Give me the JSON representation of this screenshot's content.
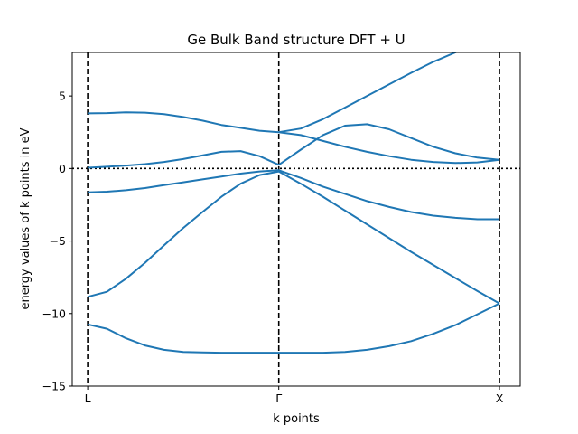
{
  "chart_data": {
    "type": "line",
    "title": "Ge Bulk Band structure DFT + U",
    "xlabel": "k points",
    "ylabel": "energy values of k points in eV",
    "xticks": [
      {
        "label": "L",
        "x": 0.0
      },
      {
        "label": "Γ",
        "x": 0.866
      },
      {
        "label": "X",
        "x": 1.866
      }
    ],
    "xlim": [
      -0.07,
      1.96
    ],
    "ylim": [
      -15,
      8
    ],
    "yticks": [
      -15,
      -10,
      -5,
      0,
      5
    ],
    "fermi_level": 0,
    "vertical_lines_at": [
      0.0,
      0.866,
      1.866
    ],
    "series_color": "#1f77b4",
    "series": [
      {
        "x": [
          0.0,
          0.087,
          0.173,
          0.26,
          0.346,
          0.433,
          0.52,
          0.606,
          0.693,
          0.779,
          0.866,
          0.966,
          1.066,
          1.166,
          1.266,
          1.366,
          1.466,
          1.566,
          1.666,
          1.766,
          1.866
        ],
        "y": [
          -10.75,
          -11.05,
          -11.7,
          -12.2,
          -12.5,
          -12.65,
          -12.68,
          -12.7,
          -12.7,
          -12.7,
          -12.7,
          -12.7,
          -12.7,
          -12.65,
          -12.5,
          -12.25,
          -11.9,
          -11.4,
          -10.8,
          -10.05,
          -9.3
        ]
      },
      {
        "x": [
          0.0,
          0.087,
          0.173,
          0.26,
          0.346,
          0.433,
          0.52,
          0.606,
          0.693,
          0.779,
          0.866,
          0.966,
          1.066,
          1.166,
          1.266,
          1.366,
          1.466,
          1.566,
          1.666,
          1.766,
          1.866
        ],
        "y": [
          -8.85,
          -8.5,
          -7.6,
          -6.5,
          -5.3,
          -4.1,
          -3.0,
          -1.95,
          -1.05,
          -0.45,
          -0.2,
          -1.05,
          -1.95,
          -2.9,
          -3.85,
          -4.8,
          -5.75,
          -6.65,
          -7.55,
          -8.45,
          -9.3
        ]
      },
      {
        "x": [
          0.0,
          0.087,
          0.173,
          0.26,
          0.346,
          0.433,
          0.52,
          0.606,
          0.693,
          0.779,
          0.866,
          0.966,
          1.066,
          1.166,
          1.266,
          1.366,
          1.466,
          1.566,
          1.666,
          1.766,
          1.866
        ],
        "y": [
          -1.65,
          -1.6,
          -1.5,
          -1.35,
          -1.15,
          -0.95,
          -0.75,
          -0.55,
          -0.35,
          -0.2,
          -0.12,
          -0.65,
          -1.25,
          -1.75,
          -2.25,
          -2.65,
          -3.0,
          -3.25,
          -3.4,
          -3.5,
          -3.5
        ]
      },
      {
        "x": [
          0.0,
          0.087,
          0.173,
          0.26,
          0.346,
          0.433,
          0.52,
          0.606,
          0.693,
          0.779,
          0.866,
          0.966,
          1.066,
          1.166,
          1.266,
          1.366,
          1.466,
          1.566,
          1.666,
          1.766,
          1.866
        ],
        "y": [
          0.05,
          0.12,
          0.2,
          0.3,
          0.45,
          0.65,
          0.9,
          1.15,
          1.2,
          0.85,
          0.25,
          1.3,
          2.3,
          2.95,
          3.05,
          2.7,
          2.1,
          1.5,
          1.05,
          0.75,
          0.6
        ]
      },
      {
        "x": [
          0.0,
          0.087,
          0.173,
          0.26,
          0.346,
          0.433,
          0.52,
          0.606,
          0.693,
          0.779,
          0.866,
          0.966,
          1.066,
          1.166,
          1.266,
          1.366,
          1.466,
          1.566,
          1.666,
          1.766,
          1.866
        ],
        "y": [
          3.8,
          3.82,
          3.87,
          3.85,
          3.75,
          3.55,
          3.3,
          3.0,
          2.8,
          2.6,
          2.5,
          2.3,
          1.9,
          1.5,
          1.15,
          0.85,
          0.6,
          0.45,
          0.38,
          0.42,
          0.6
        ]
      },
      {
        "x": [
          0.866,
          0.966,
          1.066,
          1.166,
          1.266,
          1.366,
          1.466,
          1.566,
          1.666,
          1.716
        ],
        "y": [
          2.5,
          2.75,
          3.4,
          4.2,
          5.0,
          5.8,
          6.6,
          7.35,
          8.0,
          8.3
        ]
      }
    ]
  }
}
